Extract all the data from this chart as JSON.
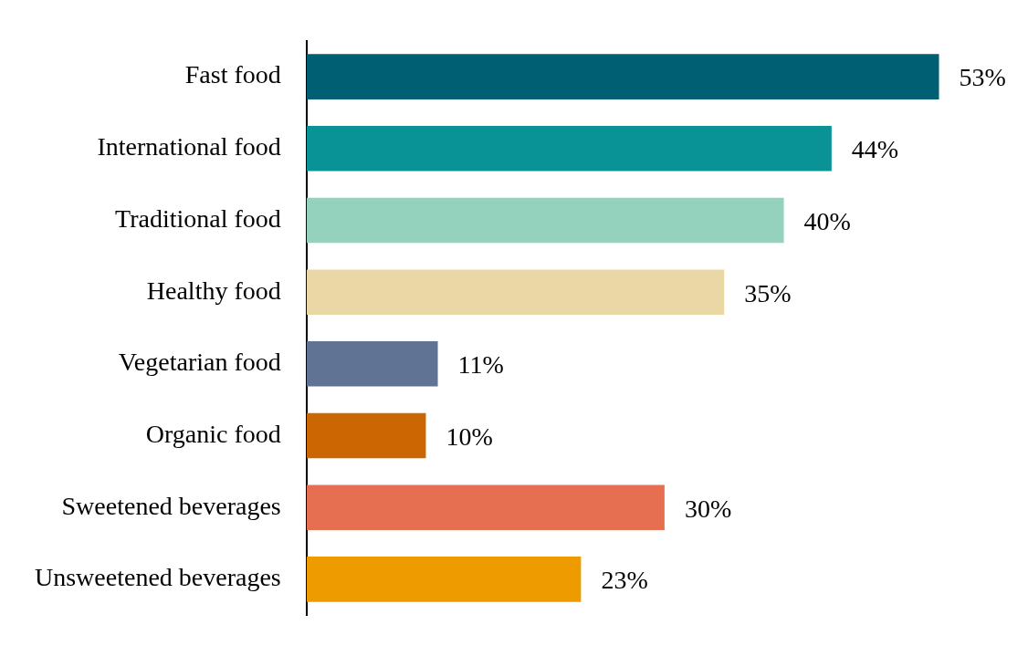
{
  "chart_data": {
    "type": "bar",
    "orientation": "horizontal",
    "categories": [
      "Fast food",
      "International food",
      "Traditional food",
      "Healthy food",
      "Vegetarian food",
      "Organic food",
      "Sweetened beverages",
      "Unsweetened beverages"
    ],
    "values": [
      53,
      44,
      40,
      35,
      11,
      10,
      30,
      23
    ],
    "colors": [
      "#005f73",
      "#0a9396",
      "#94d2bd",
      "#e9d8a6",
      "#617394",
      "#ca6702",
      "#e76f51",
      "#ee9b00"
    ],
    "value_labels": [
      "53%",
      "44%",
      "40%",
      "35%",
      "11%",
      "10%",
      "30%",
      "23%"
    ],
    "tick_labels": "y",
    "legend": false
  }
}
